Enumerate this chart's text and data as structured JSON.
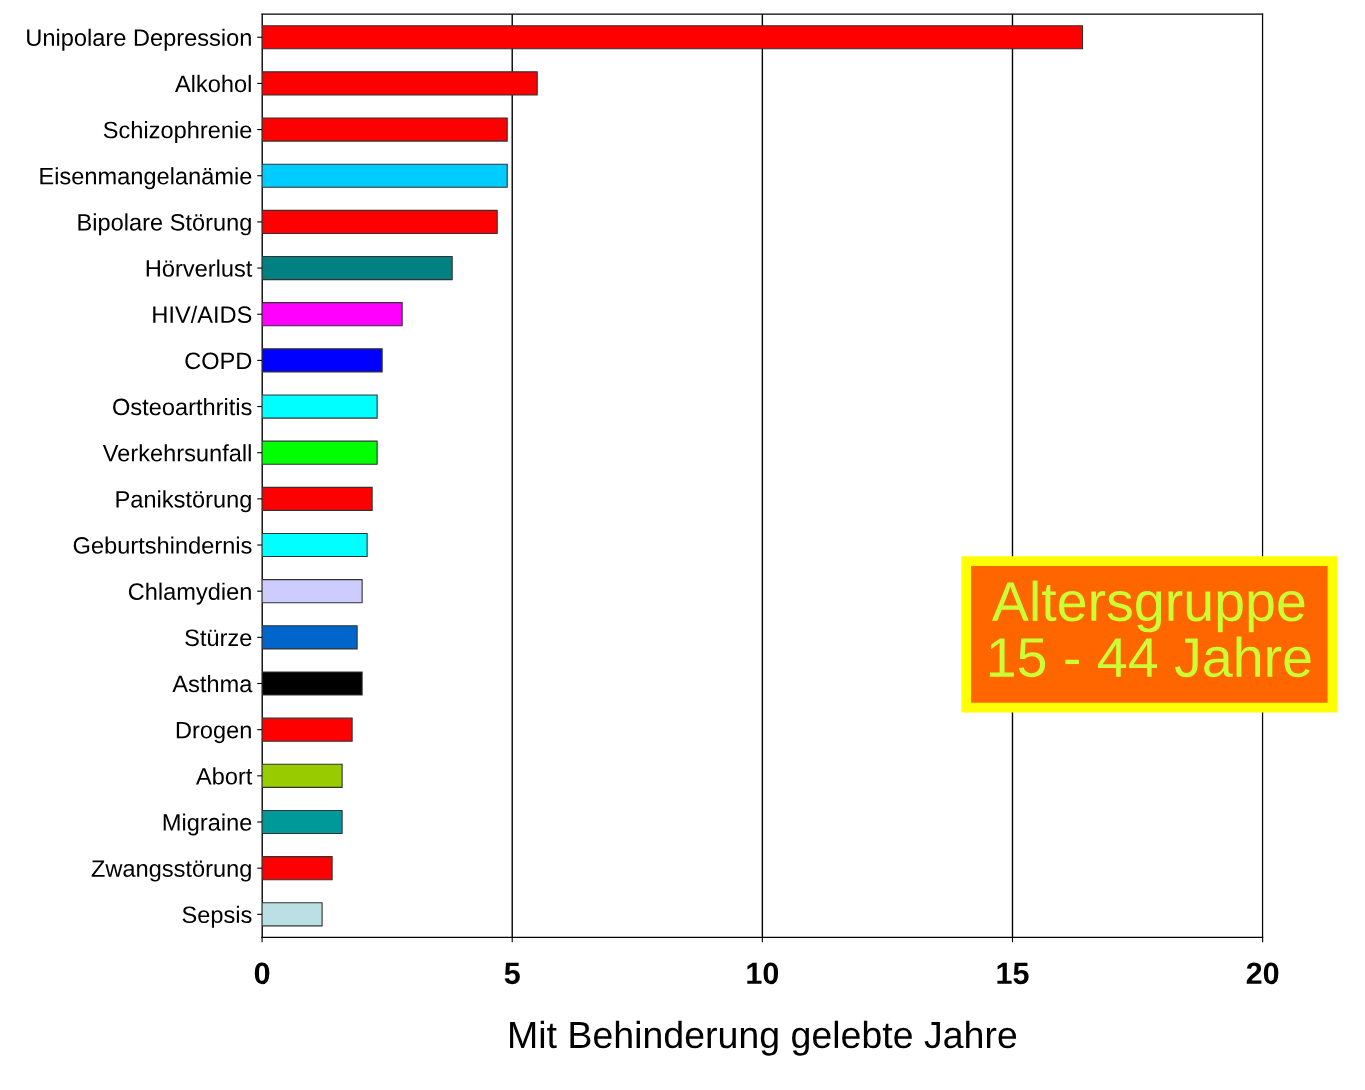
{
  "chart_data": {
    "type": "bar",
    "orientation": "horizontal",
    "xlabel": "Mit Behinderung gelebte Jahre",
    "categories": [
      "Unipolare Depression",
      "Alkohol",
      "Schizophrenie",
      "Eisenmangelanämie",
      "Bipolare Störung",
      "Hörverlust",
      "HIV/AIDS",
      "COPD",
      "Osteoarthritis",
      "Verkehrsunfall",
      "Panikstörung",
      "Geburtshindernis",
      "Chlamydien",
      "Stürze",
      "Asthma",
      "Drogen",
      "Abort",
      "Migraine",
      "Zwangsstörung",
      "Sepsis"
    ],
    "values": [
      16.4,
      5.5,
      4.9,
      4.9,
      4.7,
      3.8,
      2.8,
      2.4,
      2.3,
      2.3,
      2.2,
      2.1,
      2.0,
      1.9,
      2.0,
      1.8,
      1.6,
      1.6,
      1.4,
      1.2
    ],
    "colors": [
      "#ff0000",
      "#ff0000",
      "#ff0000",
      "#00ccff",
      "#ff0000",
      "#008080",
      "#ff00ff",
      "#0000ff",
      "#00ffff",
      "#00ff00",
      "#ff0000",
      "#00ffff",
      "#ccccff",
      "#0066cc",
      "#000000",
      "#ff0000",
      "#99cc00",
      "#009999",
      "#ff0000",
      "#bbe0e3"
    ],
    "xlim": [
      0,
      20
    ],
    "xticks": [
      0,
      5,
      10,
      15,
      20
    ],
    "grid": "x",
    "legend": false,
    "annotations": [
      "Altersgruppe\n15 - 44 Jahre"
    ]
  }
}
